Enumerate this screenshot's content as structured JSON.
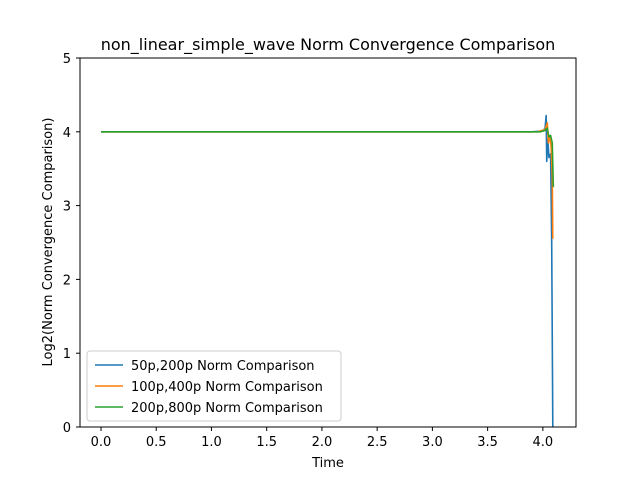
{
  "chart_data": {
    "type": "line",
    "title": "non_linear_simple_wave Norm Convergence Comparison",
    "xlabel": "Time",
    "ylabel": "Log2(Norm Convergence Comparison)",
    "xlim": [
      -0.19,
      4.3
    ],
    "ylim": [
      0,
      5
    ],
    "xticks": [
      "0.0",
      "0.5",
      "1.0",
      "1.5",
      "2.0",
      "2.5",
      "3.0",
      "3.5",
      "4.0"
    ],
    "yticks": [
      "0",
      "1",
      "2",
      "3",
      "4",
      "5"
    ],
    "grid": false,
    "legend_position": "lower-left",
    "series": [
      {
        "name": "50p,200p Norm Comparison",
        "color": "#1f77b4",
        "points": [
          [
            0.0,
            4.0
          ],
          [
            3.9,
            4.0
          ],
          [
            4.0,
            4.01
          ],
          [
            4.02,
            4.05
          ],
          [
            4.03,
            4.22
          ],
          [
            4.035,
            3.6
          ],
          [
            4.045,
            3.9
          ],
          [
            4.055,
            3.65
          ],
          [
            4.07,
            3.7
          ],
          [
            4.08,
            2.5
          ],
          [
            4.09,
            0.0
          ]
        ]
      },
      {
        "name": "100p,400p Norm Comparison",
        "color": "#ff7f0e",
        "points": [
          [
            0.0,
            4.0
          ],
          [
            3.95,
            4.0
          ],
          [
            4.02,
            4.03
          ],
          [
            4.04,
            4.12
          ],
          [
            4.05,
            3.85
          ],
          [
            4.06,
            3.95
          ],
          [
            4.075,
            3.8
          ],
          [
            4.085,
            3.4
          ],
          [
            4.09,
            2.55
          ]
        ]
      },
      {
        "name": "200p,800p Norm Comparison",
        "color": "#2ca02c",
        "points": [
          [
            0.0,
            4.0
          ],
          [
            3.98,
            4.0
          ],
          [
            4.02,
            4.02
          ],
          [
            4.04,
            4.05
          ],
          [
            4.055,
            3.93
          ],
          [
            4.07,
            3.95
          ],
          [
            4.085,
            3.85
          ],
          [
            4.09,
            3.55
          ],
          [
            4.095,
            3.25
          ]
        ]
      }
    ]
  }
}
